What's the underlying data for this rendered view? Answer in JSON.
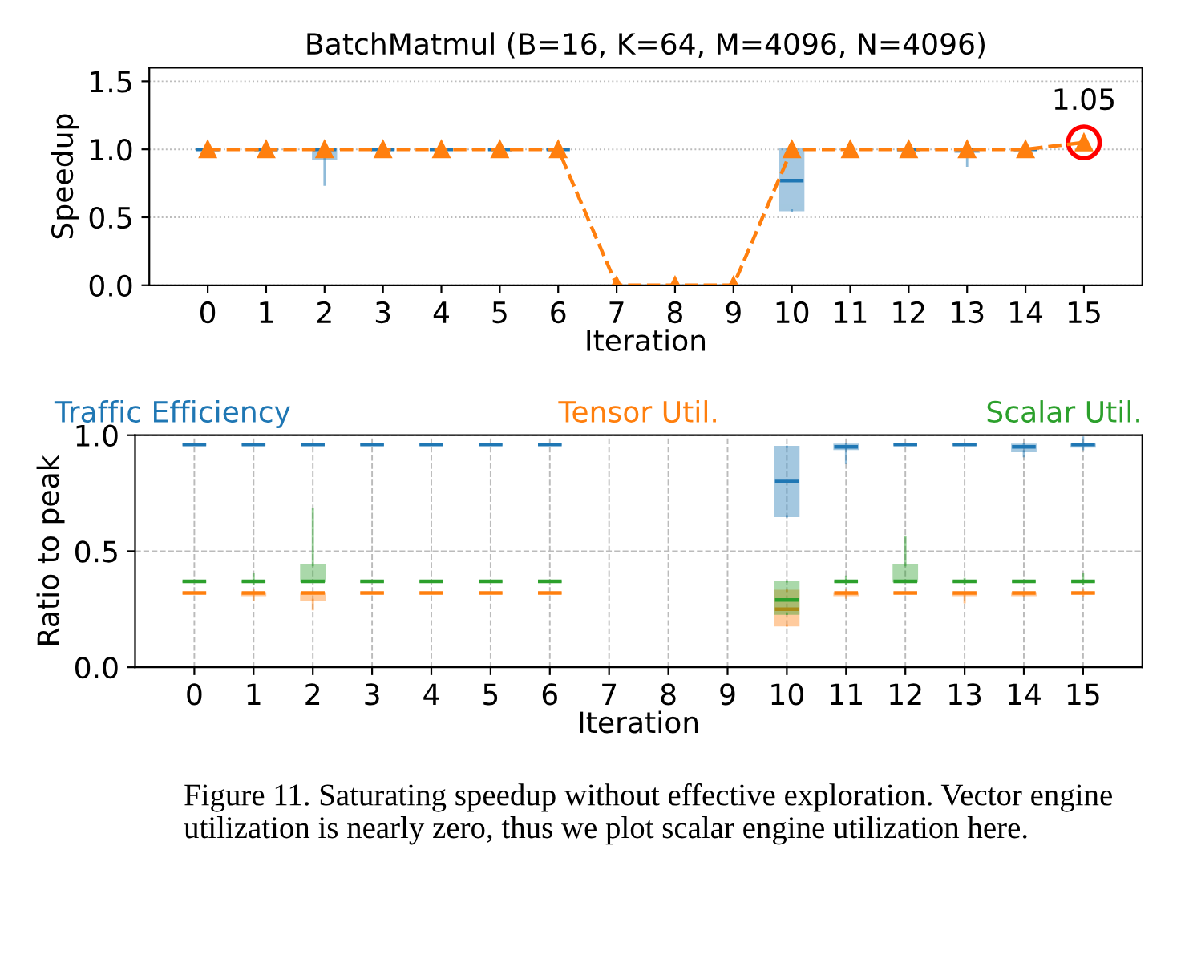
{
  "chart_data": [
    {
      "type": "box",
      "title": "BatchMatmul (B=16, K=64, M=4096, N=4096)",
      "xlabel": "Iteration",
      "ylabel": "Speedup",
      "categories": [
        "0",
        "1",
        "2",
        "3",
        "4",
        "5",
        "6",
        "7",
        "8",
        "9",
        "10",
        "11",
        "12",
        "13",
        "14",
        "15"
      ],
      "ylim": [
        0,
        1.6
      ],
      "yticks": [
        {
          "value": 0,
          "label": "0.0"
        },
        {
          "value": 0.5,
          "label": "0.5"
        },
        {
          "value": 1,
          "label": "1.0"
        },
        {
          "value": 1.5,
          "label": "1.5"
        }
      ],
      "grid": "y",
      "series": [
        {
          "type": "box",
          "color": "#1f77b4",
          "boxes": [
            {
              "low": 1,
              "q1": 1,
              "median": 1,
              "q3": 1,
              "high": 1
            },
            {
              "low": 0.97,
              "q1": 1,
              "median": 1,
              "q3": 1,
              "high": 1
            },
            {
              "low": 0.74,
              "q1": 0.93,
              "median": 1,
              "q3": 1,
              "high": 1
            },
            {
              "low": 1,
              "q1": 1,
              "median": 1,
              "q3": 1,
              "high": 1
            },
            {
              "low": 1,
              "q1": 1,
              "median": 1,
              "q3": 1,
              "high": 1
            },
            {
              "low": 1,
              "q1": 1,
              "median": 1,
              "q3": 1,
              "high": 1
            },
            {
              "low": 1,
              "q1": 1,
              "median": 1,
              "q3": 1,
              "high": 1
            },
            null,
            null,
            null,
            {
              "low": 0.55,
              "q1": 0.55,
              "median": 0.77,
              "q3": 1,
              "high": 1
            },
            null,
            {
              "low": 1,
              "q1": 1,
              "median": 1,
              "q3": 1,
              "high": 1
            },
            {
              "low": 0.88,
              "q1": 0.98,
              "median": 1,
              "q3": 1,
              "high": 1
            },
            {
              "low": 0.98,
              "q1": 1,
              "median": 1,
              "q3": 1,
              "high": 1
            },
            null
          ]
        },
        {
          "type": "line",
          "color": "#ff7f0e",
          "marker": "triangle",
          "line_style": "dashed",
          "values": [
            1,
            1,
            1,
            1,
            1,
            1,
            1,
            0,
            0,
            0,
            1,
            1,
            1,
            1,
            1,
            1.05
          ]
        },
        {
          "type": "scatter",
          "color": "#ff0000",
          "marker": "circle",
          "x": [
            "15"
          ],
          "values": [
            1.05
          ]
        }
      ],
      "annotations": [
        {
          "text": "1.05",
          "x": "15",
          "y": 1.05
        }
      ]
    },
    {
      "type": "box",
      "xlabel": "Iteration",
      "ylabel": "Ratio to peak",
      "categories": [
        "0",
        "1",
        "2",
        "3",
        "4",
        "5",
        "6",
        "7",
        "8",
        "9",
        "10",
        "11",
        "12",
        "13",
        "14",
        "15"
      ],
      "ylim": [
        0,
        1.0
      ],
      "yticks": [
        {
          "value": 0,
          "label": "0.0"
        },
        {
          "value": 0.5,
          "label": "0.5"
        },
        {
          "value": 1,
          "label": "1.0"
        }
      ],
      "grid": true,
      "legend": "top",
      "series": [
        {
          "name": "Traffic Efficiency",
          "color": "#1f77b4",
          "boxes": [
            {
              "low": 0.96,
              "q1": 0.96,
              "median": 0.96,
              "q3": 0.96,
              "high": 0.96
            },
            {
              "low": 0.96,
              "q1": 0.96,
              "median": 0.96,
              "q3": 0.96,
              "high": 0.96
            },
            {
              "low": 0.96,
              "q1": 0.96,
              "median": 0.96,
              "q3": 0.96,
              "high": 0.96
            },
            {
              "low": 0.96,
              "q1": 0.96,
              "median": 0.96,
              "q3": 0.96,
              "high": 0.96
            },
            {
              "low": 0.96,
              "q1": 0.96,
              "median": 0.96,
              "q3": 0.96,
              "high": 0.96
            },
            {
              "low": 0.96,
              "q1": 0.96,
              "median": 0.96,
              "q3": 0.96,
              "high": 0.96
            },
            {
              "low": 0.96,
              "q1": 0.96,
              "median": 0.96,
              "q3": 0.96,
              "high": 0.96
            },
            null,
            null,
            null,
            {
              "low": 0.65,
              "q1": 0.65,
              "median": 0.8,
              "q3": 0.95,
              "high": 0.95
            },
            {
              "low": 0.88,
              "q1": 0.94,
              "median": 0.95,
              "q3": 0.96,
              "high": 0.96
            },
            {
              "low": 0.96,
              "q1": 0.96,
              "median": 0.96,
              "q3": 0.96,
              "high": 0.96
            },
            {
              "low": 0.96,
              "q1": 0.96,
              "median": 0.96,
              "q3": 0.96,
              "high": 0.96
            },
            {
              "low": 0.91,
              "q1": 0.93,
              "median": 0.95,
              "q3": 0.96,
              "high": 0.96
            },
            {
              "low": 0.94,
              "q1": 0.95,
              "median": 0.96,
              "q3": 0.96,
              "high": 0.99
            }
          ]
        },
        {
          "name": "Tensor Util.",
          "color": "#ff7f0e",
          "boxes": [
            {
              "low": 0.32,
              "q1": 0.32,
              "median": 0.32,
              "q3": 0.32,
              "high": 0.32
            },
            {
              "low": 0.29,
              "q1": 0.31,
              "median": 0.32,
              "q3": 0.32,
              "high": 0.33
            },
            {
              "low": 0.25,
              "q1": 0.29,
              "median": 0.32,
              "q3": 0.32,
              "high": 0.32
            },
            {
              "low": 0.32,
              "q1": 0.32,
              "median": 0.32,
              "q3": 0.32,
              "high": 0.32
            },
            {
              "low": 0.32,
              "q1": 0.32,
              "median": 0.32,
              "q3": 0.32,
              "high": 0.32
            },
            {
              "low": 0.32,
              "q1": 0.32,
              "median": 0.32,
              "q3": 0.32,
              "high": 0.32
            },
            {
              "low": 0.32,
              "q1": 0.32,
              "median": 0.32,
              "q3": 0.32,
              "high": 0.32
            },
            null,
            null,
            null,
            {
              "low": 0.18,
              "q1": 0.18,
              "median": 0.25,
              "q3": 0.33,
              "high": 0.33
            },
            {
              "low": 0.3,
              "q1": 0.31,
              "median": 0.32,
              "q3": 0.32,
              "high": 0.33
            },
            {
              "low": 0.32,
              "q1": 0.32,
              "median": 0.32,
              "q3": 0.32,
              "high": 0.32
            },
            {
              "low": 0.28,
              "q1": 0.31,
              "median": 0.32,
              "q3": 0.32,
              "high": 0.32
            },
            {
              "low": 0.31,
              "q1": 0.31,
              "median": 0.32,
              "q3": 0.32,
              "high": 0.32
            },
            {
              "low": 0.31,
              "q1": 0.32,
              "median": 0.32,
              "q3": 0.32,
              "high": 0.33
            }
          ]
        },
        {
          "name": "Scalar Util.",
          "color": "#2ca02c",
          "boxes": [
            {
              "low": 0.37,
              "q1": 0.37,
              "median": 0.37,
              "q3": 0.37,
              "high": 0.37
            },
            {
              "low": 0.36,
              "q1": 0.37,
              "median": 0.37,
              "q3": 0.37,
              "high": 0.4
            },
            {
              "low": 0.37,
              "q1": 0.37,
              "median": 0.37,
              "q3": 0.44,
              "high": 0.68
            },
            {
              "low": 0.37,
              "q1": 0.37,
              "median": 0.37,
              "q3": 0.37,
              "high": 0.37
            },
            {
              "low": 0.37,
              "q1": 0.37,
              "median": 0.37,
              "q3": 0.37,
              "high": 0.37
            },
            {
              "low": 0.37,
              "q1": 0.37,
              "median": 0.37,
              "q3": 0.37,
              "high": 0.37
            },
            {
              "low": 0.37,
              "q1": 0.37,
              "median": 0.37,
              "q3": 0.37,
              "high": 0.37
            },
            null,
            null,
            null,
            {
              "low": 0.23,
              "q1": 0.23,
              "median": 0.29,
              "q3": 0.37,
              "high": 0.37
            },
            {
              "low": 0.36,
              "q1": 0.37,
              "median": 0.37,
              "q3": 0.37,
              "high": 0.39
            },
            {
              "low": 0.37,
              "q1": 0.37,
              "median": 0.37,
              "q3": 0.44,
              "high": 0.56
            },
            {
              "low": 0.36,
              "q1": 0.37,
              "median": 0.37,
              "q3": 0.37,
              "high": 0.38
            },
            {
              "low": 0.37,
              "q1": 0.37,
              "median": 0.37,
              "q3": 0.37,
              "high": 0.37
            },
            {
              "low": 0.36,
              "q1": 0.37,
              "median": 0.37,
              "q3": 0.37,
              "high": 0.4
            }
          ]
        }
      ],
      "annotations": [
        "Figure 11. Saturating speedup without effective exploration. Vector engine utilization is nearly zero, thus we plot scalar engine utilization here."
      ]
    }
  ]
}
